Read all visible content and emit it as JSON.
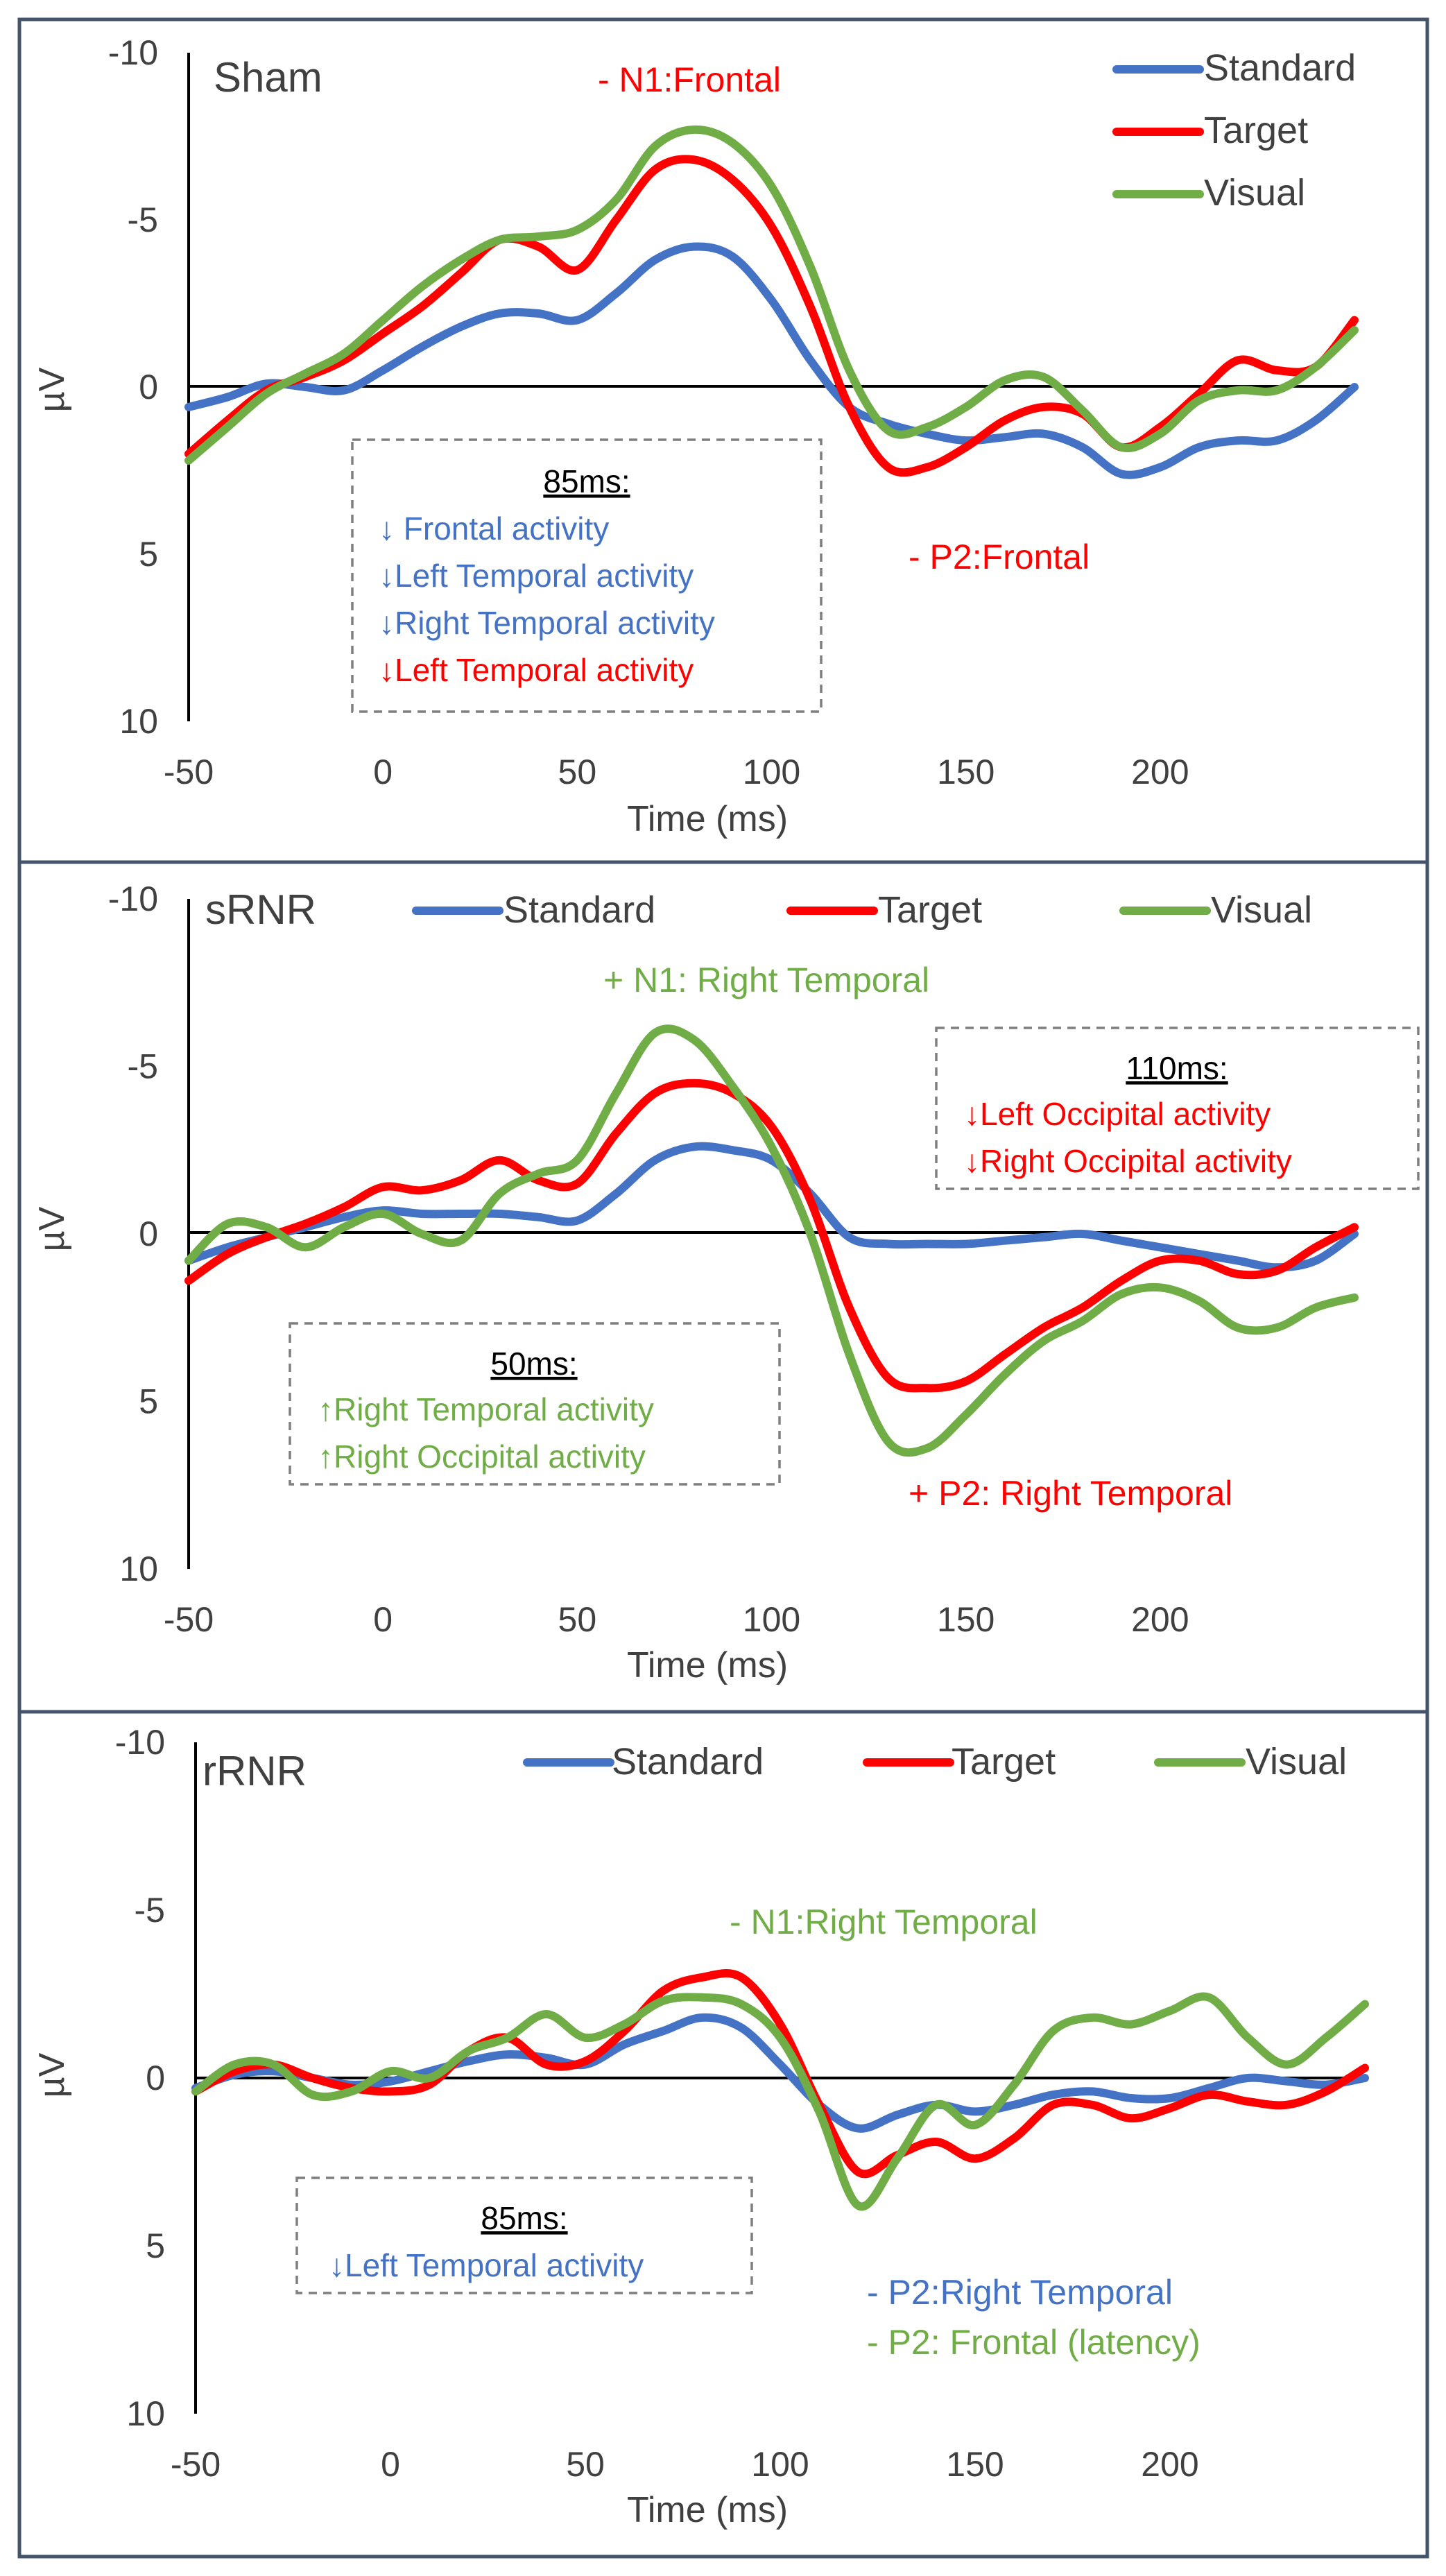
{
  "colors": {
    "Standard": "#4472c4",
    "Target": "#ff0000",
    "Visual": "#70ad47",
    "box_title": "#000000"
  },
  "chart_data": [
    {
      "type": "line",
      "title": "Sham",
      "xlabel": "Time (ms)",
      "ylabel": "µV",
      "xlim": [
        -50,
        250
      ],
      "ylim": [
        -10,
        10
      ],
      "y_inverted": true,
      "xticks": [
        -50,
        0,
        50,
        100,
        150,
        200
      ],
      "yticks": [
        -10,
        -5,
        0,
        5,
        10
      ],
      "ytick_labels": [
        "-10",
        "-5",
        "0",
        "5",
        "10"
      ],
      "legend": [
        "Standard",
        "Target",
        "Visual"
      ],
      "legend_placement": "top-right",
      "series": [
        {
          "name": "Standard",
          "x": [
            -50,
            -40,
            -30,
            -20,
            -10,
            0,
            10,
            20,
            30,
            40,
            50,
            60,
            70,
            80,
            90,
            100,
            110,
            120,
            130,
            140,
            150,
            160,
            170,
            180,
            190,
            200,
            210,
            220,
            230,
            240,
            250
          ],
          "y": [
            0.6,
            0.3,
            -0.1,
            0.0,
            0.1,
            -0.5,
            -1.2,
            -1.8,
            -2.2,
            -2.2,
            -2.0,
            -2.8,
            -3.8,
            -4.2,
            -3.9,
            -2.6,
            -0.8,
            0.6,
            1.1,
            1.4,
            1.6,
            1.5,
            1.4,
            1.8,
            2.6,
            2.4,
            1.8,
            1.6,
            1.6,
            1.0,
            0.0
          ]
        },
        {
          "name": "Target",
          "x": [
            -50,
            -40,
            -30,
            -20,
            -10,
            0,
            10,
            20,
            30,
            40,
            50,
            60,
            70,
            80,
            90,
            100,
            110,
            120,
            130,
            140,
            150,
            160,
            170,
            180,
            190,
            200,
            210,
            220,
            230,
            240,
            250
          ],
          "y": [
            2.0,
            1.0,
            0.1,
            -0.3,
            -0.8,
            -1.6,
            -2.4,
            -3.4,
            -4.4,
            -4.2,
            -3.5,
            -5.0,
            -6.5,
            -6.8,
            -6.2,
            -4.8,
            -2.4,
            0.6,
            2.4,
            2.4,
            1.8,
            1.0,
            0.6,
            0.8,
            1.8,
            1.2,
            0.2,
            -0.8,
            -0.5,
            -0.6,
            -2.0
          ]
        },
        {
          "name": "Visual",
          "x": [
            -50,
            -40,
            -30,
            -20,
            -10,
            0,
            10,
            20,
            30,
            40,
            50,
            60,
            70,
            80,
            90,
            100,
            110,
            120,
            130,
            140,
            150,
            160,
            170,
            180,
            190,
            200,
            210,
            220,
            230,
            240,
            250
          ],
          "y": [
            2.2,
            1.2,
            0.2,
            -0.4,
            -1.0,
            -2.0,
            -3.0,
            -3.8,
            -4.4,
            -4.5,
            -4.7,
            -5.6,
            -7.2,
            -7.7,
            -7.3,
            -6.0,
            -3.6,
            -0.5,
            1.3,
            1.2,
            0.6,
            -0.2,
            -0.3,
            0.7,
            1.8,
            1.4,
            0.4,
            0.1,
            0.1,
            -0.6,
            -1.7
          ]
        }
      ],
      "annotations": [
        {
          "text": "- N1:Frontal",
          "color": "Target"
        },
        {
          "text": "- P2:Frontal",
          "color": "Target"
        }
      ],
      "box": {
        "title": "85ms:",
        "lines": [
          {
            "text": "↓ Frontal activity",
            "color": "Standard"
          },
          {
            "text": "↓Left Temporal activity",
            "color": "Standard"
          },
          {
            "text": "↓Right Temporal activity",
            "color": "Standard"
          },
          {
            "text": "↓Left Temporal activity",
            "color": "Target"
          }
        ]
      }
    },
    {
      "type": "line",
      "title": "sRNR",
      "xlabel": "Time (ms)",
      "ylabel": "µV",
      "xlim": [
        -50,
        250
      ],
      "ylim": [
        -10,
        10
      ],
      "y_inverted": true,
      "xticks": [
        -50,
        0,
        50,
        100,
        150,
        200
      ],
      "yticks": [
        -10,
        -5,
        0,
        5,
        10
      ],
      "ytick_labels": [
        "-10",
        "-5",
        "0",
        "5",
        "10"
      ],
      "legend": [
        "Standard",
        "Target",
        "Visual"
      ],
      "legend_placement": "top",
      "series": [
        {
          "name": "Standard",
          "x": [
            -50,
            -40,
            -30,
            -20,
            -10,
            0,
            10,
            20,
            30,
            40,
            50,
            60,
            70,
            80,
            90,
            100,
            110,
            120,
            130,
            140,
            150,
            160,
            170,
            180,
            190,
            200,
            210,
            220,
            230,
            240,
            250
          ],
          "y": [
            0.8,
            0.4,
            0.1,
            -0.2,
            -0.5,
            -0.7,
            -0.6,
            -0.6,
            -0.6,
            -0.5,
            -0.4,
            -1.2,
            -2.2,
            -2.6,
            -2.5,
            -2.2,
            -1.2,
            0.1,
            0.3,
            0.3,
            0.3,
            0.2,
            0.1,
            0.0,
            0.2,
            0.4,
            0.6,
            0.8,
            1.0,
            0.8,
            0.0
          ]
        },
        {
          "name": "Target",
          "x": [
            -50,
            -40,
            -30,
            -20,
            -10,
            0,
            10,
            20,
            30,
            40,
            50,
            60,
            70,
            80,
            90,
            100,
            110,
            120,
            130,
            140,
            150,
            160,
            170,
            180,
            190,
            200,
            210,
            220,
            230,
            240,
            250
          ],
          "y": [
            1.4,
            0.6,
            0.1,
            -0.3,
            -0.8,
            -1.4,
            -1.3,
            -1.6,
            -2.2,
            -1.6,
            -1.5,
            -3.0,
            -4.2,
            -4.5,
            -4.2,
            -3.2,
            -1.0,
            2.2,
            4.3,
            4.6,
            4.4,
            3.6,
            2.8,
            2.2,
            1.4,
            0.8,
            0.8,
            1.2,
            1.1,
            0.4,
            -0.2
          ]
        },
        {
          "name": "Visual",
          "x": [
            -50,
            -40,
            -30,
            -20,
            -10,
            0,
            10,
            20,
            30,
            40,
            50,
            60,
            70,
            80,
            90,
            100,
            110,
            120,
            130,
            140,
            150,
            160,
            170,
            180,
            190,
            200,
            210,
            220,
            230,
            240,
            250
          ],
          "y": [
            0.8,
            -0.3,
            -0.2,
            0.4,
            -0.2,
            -0.6,
            0.0,
            0.2,
            -1.2,
            -1.8,
            -2.2,
            -4.2,
            -6.0,
            -5.8,
            -4.4,
            -2.6,
            0.0,
            3.6,
            6.2,
            6.4,
            5.4,
            4.2,
            3.2,
            2.6,
            1.8,
            1.6,
            2.0,
            2.8,
            2.8,
            2.2,
            1.9
          ]
        }
      ],
      "annotations": [
        {
          "text": "+ N1: Right Temporal",
          "color": "Visual"
        },
        {
          "text": "+ P2: Right Temporal",
          "color": "Target"
        }
      ],
      "boxes": [
        {
          "title": "110ms:",
          "lines": [
            {
              "text": "↓Left Occipital activity",
              "color": "Target"
            },
            {
              "text": "↓Right Occipital activity",
              "color": "Target"
            }
          ]
        },
        {
          "title": "50ms:",
          "lines": [
            {
              "text": "↑Right Temporal activity",
              "color": "Visual"
            },
            {
              "text": "↑Right Occipital activity",
              "color": "Visual"
            }
          ]
        }
      ]
    },
    {
      "type": "line",
      "title": "rRNR",
      "xlabel": "Time (ms)",
      "ylabel": "µV",
      "xlim": [
        -50,
        250
      ],
      "ylim": [
        -10,
        10
      ],
      "y_inverted": true,
      "xticks": [
        -50,
        0,
        50,
        100,
        150,
        200
      ],
      "yticks": [
        -10,
        -5,
        0,
        5,
        10
      ],
      "ytick_labels": [
        "-10",
        "-5",
        "0",
        "5",
        "10"
      ],
      "legend": [
        "Standard",
        "Target",
        "Visual"
      ],
      "legend_placement": "top",
      "series": [
        {
          "name": "Standard",
          "x": [
            -50,
            -40,
            -30,
            -20,
            -10,
            0,
            10,
            20,
            30,
            40,
            50,
            60,
            70,
            80,
            90,
            100,
            110,
            120,
            130,
            140,
            150,
            160,
            170,
            180,
            190,
            200,
            210,
            220,
            230,
            240,
            250
          ],
          "y": [
            0.3,
            -0.1,
            -0.2,
            0.0,
            0.2,
            0.1,
            -0.2,
            -0.5,
            -0.7,
            -0.6,
            -0.4,
            -1.0,
            -1.4,
            -1.8,
            -1.5,
            -0.4,
            0.8,
            1.5,
            1.1,
            0.8,
            1.0,
            0.8,
            0.5,
            0.4,
            0.6,
            0.6,
            0.3,
            0.0,
            0.1,
            0.2,
            0.0
          ]
        },
        {
          "name": "Target",
          "x": [
            -50,
            -40,
            -30,
            -20,
            -10,
            0,
            10,
            20,
            30,
            40,
            50,
            60,
            70,
            80,
            90,
            100,
            110,
            120,
            130,
            140,
            150,
            160,
            170,
            180,
            190,
            200,
            210,
            220,
            230,
            240,
            250
          ],
          "y": [
            0.4,
            -0.2,
            -0.4,
            0.0,
            0.3,
            0.4,
            0.2,
            -0.8,
            -1.2,
            -0.4,
            -0.5,
            -1.4,
            -2.6,
            -3.0,
            -3.0,
            -1.6,
            0.8,
            2.8,
            2.3,
            1.9,
            2.4,
            1.8,
            0.8,
            0.8,
            1.2,
            0.9,
            0.5,
            0.7,
            0.8,
            0.4,
            -0.3
          ]
        },
        {
          "name": "Visual",
          "x": [
            -50,
            -40,
            -30,
            -20,
            -10,
            0,
            10,
            20,
            30,
            40,
            50,
            60,
            70,
            80,
            90,
            100,
            110,
            120,
            130,
            140,
            150,
            160,
            170,
            180,
            190,
            200,
            210,
            220,
            230,
            240,
            250
          ],
          "y": [
            0.4,
            -0.4,
            -0.4,
            0.5,
            0.4,
            -0.2,
            0.0,
            -0.8,
            -1.2,
            -1.9,
            -1.2,
            -1.6,
            -2.3,
            -2.4,
            -2.2,
            -1.2,
            1.0,
            3.8,
            2.4,
            0.8,
            1.4,
            0.2,
            -1.4,
            -1.8,
            -1.6,
            -2.0,
            -2.4,
            -1.2,
            -0.4,
            -1.2,
            -2.2
          ]
        }
      ],
      "annotations": [
        {
          "text": "- N1:Right Temporal",
          "color": "Visual"
        },
        {
          "text": "- P2:Right Temporal",
          "color": "Standard"
        },
        {
          "text": "- P2: Frontal (latency)",
          "color": "Visual"
        }
      ],
      "box": {
        "title": "85ms:",
        "lines": [
          {
            "text": "↓Left Temporal activity",
            "color": "Standard"
          }
        ]
      }
    }
  ]
}
